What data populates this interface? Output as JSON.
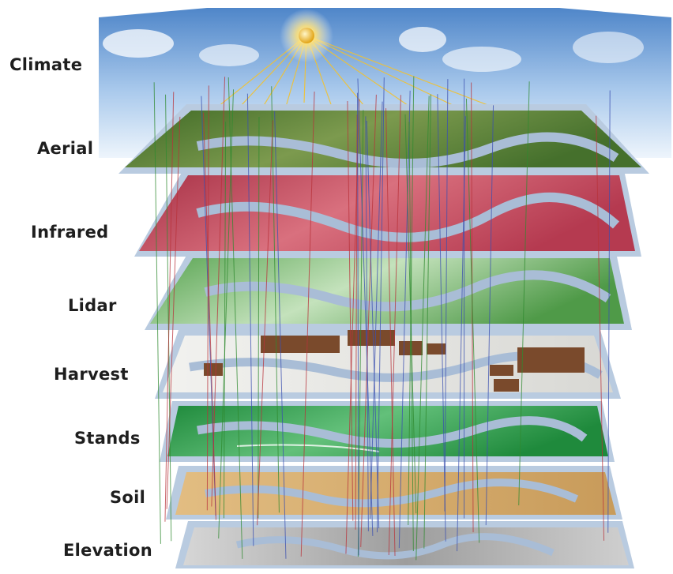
{
  "layers": [
    {
      "key": "climate",
      "label": "Climate"
    },
    {
      "key": "aerial",
      "label": "Aerial"
    },
    {
      "key": "infrared",
      "label": "Infrared"
    },
    {
      "key": "lidar",
      "label": "Lidar"
    },
    {
      "key": "harvest",
      "label": "Harvest"
    },
    {
      "key": "stands",
      "label": "Stands"
    },
    {
      "key": "soil",
      "label": "Soil"
    },
    {
      "key": "elevation",
      "label": "Elevation"
    }
  ],
  "colors": {
    "sky_top": "#4f86c9",
    "sky_bottom": "#e8f1fb",
    "sun": "#f7c531",
    "water": "#9fb4cc",
    "plate": "#c7d6e6",
    "aerial": "#4f7a2e",
    "infrared": "#c2455a",
    "lidar": "#6fb561",
    "harvest": "#e6e6e2",
    "harvest_block": "#7a4a2c",
    "stands": "#2e9a4a",
    "soil": "#d6aa6a",
    "elevation": "#bdbdbd",
    "pin_blue": "#3a4fb0",
    "pin_red": "#b8323a",
    "pin_green": "#2f8a2f"
  }
}
